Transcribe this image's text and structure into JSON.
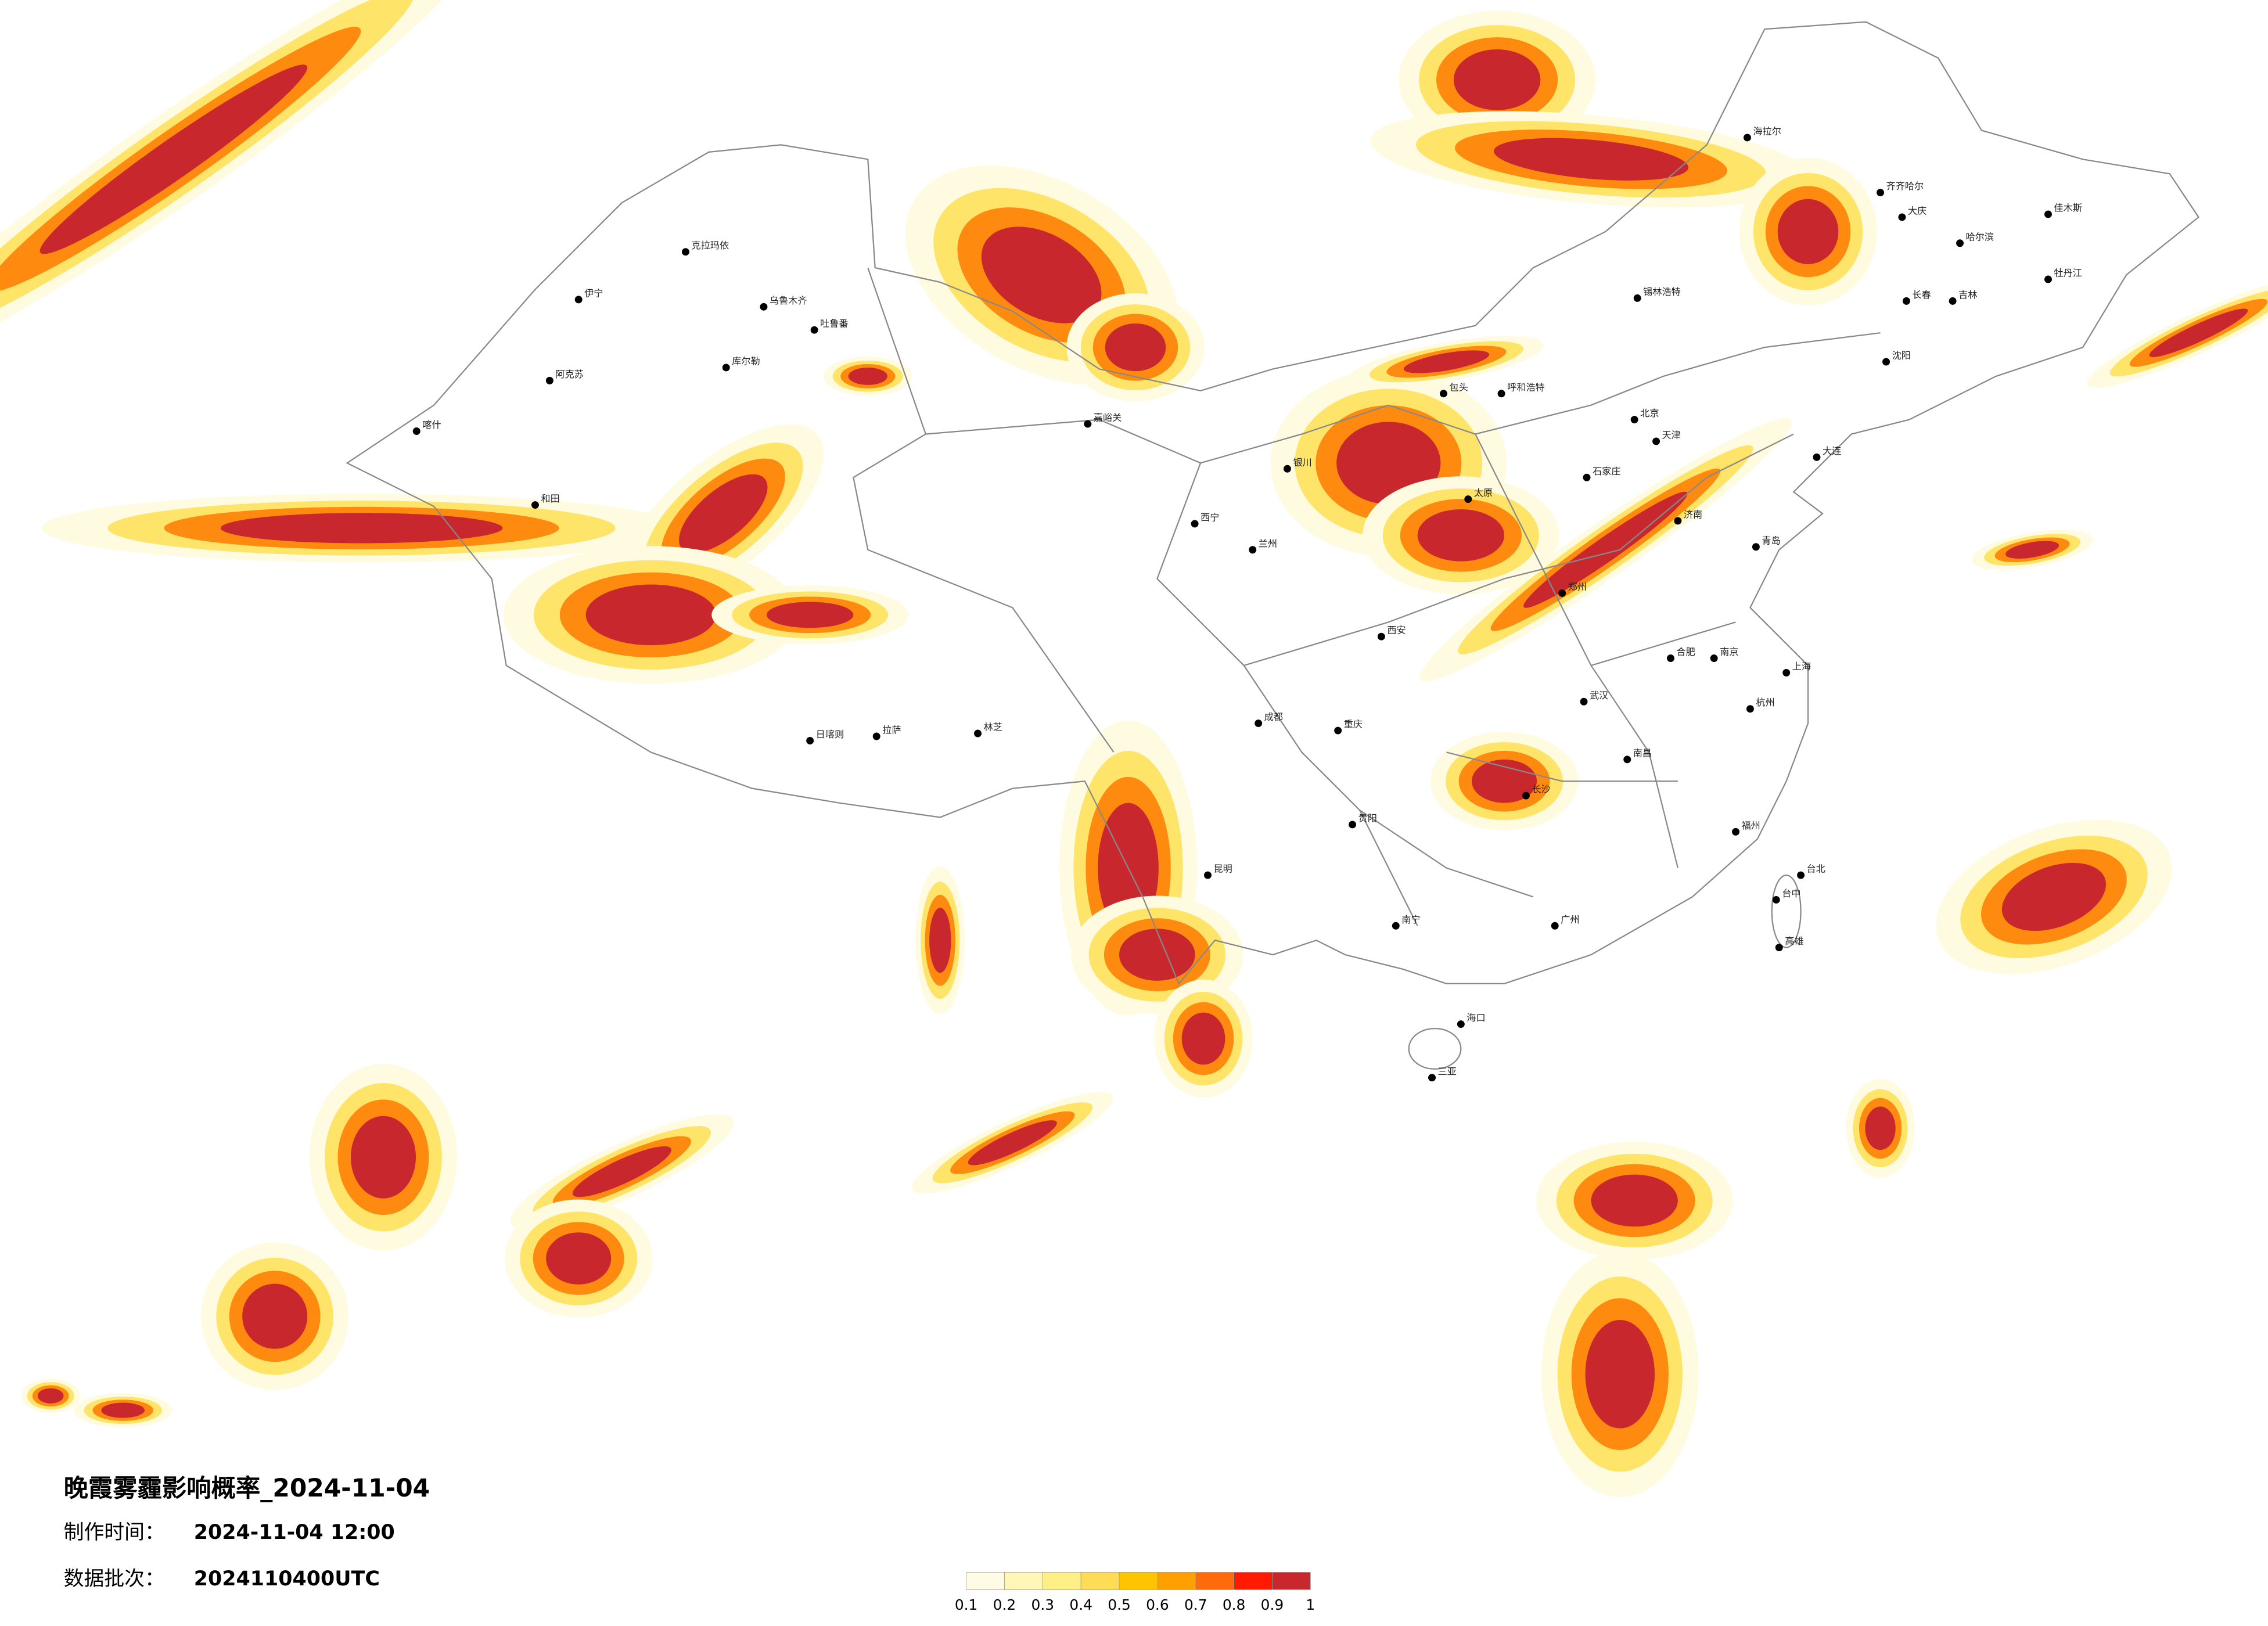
{
  "title": "晚霞雾霾影响概率_2024-11-04",
  "info": [
    {
      "label": "制作时间：",
      "value": "2024-11-04 12:00"
    },
    {
      "label": "数据批次：",
      "value": "2024110400UTC"
    }
  ],
  "legend": {
    "ticks": [
      0.1,
      0.2,
      0.3,
      0.4,
      0.5,
      0.6,
      0.7,
      0.8,
      0.9,
      1
    ],
    "colors": [
      "#fffce6",
      "#fff6b8",
      "#ffef86",
      "#ffdc55",
      "#ffc400",
      "#ffa000",
      "#ff6b0a",
      "#ff1a00",
      "#c8282d"
    ]
  },
  "cities": [
    {
      "name": "克拉玛依"
    },
    {
      "name": "乌鲁木齐"
    },
    {
      "name": "吐鲁番"
    },
    {
      "name": "库尔勒"
    },
    {
      "name": "阿克苏"
    },
    {
      "name": "伊宁"
    },
    {
      "name": "喀什"
    },
    {
      "name": "和田"
    },
    {
      "name": "嘉峪关"
    },
    {
      "name": "西宁"
    },
    {
      "name": "兰州"
    },
    {
      "name": "银川"
    },
    {
      "name": "拉萨"
    },
    {
      "name": "日喀则"
    },
    {
      "name": "林芝"
    },
    {
      "name": "锡林浩特"
    },
    {
      "name": "海拉尔"
    },
    {
      "name": "齐齐哈尔"
    },
    {
      "name": "哈尔滨"
    },
    {
      "name": "大庆"
    },
    {
      "name": "长春"
    },
    {
      "name": "吉林"
    },
    {
      "name": "牡丹江"
    },
    {
      "name": "佳木斯"
    },
    {
      "name": "沈阳"
    },
    {
      "name": "大连"
    },
    {
      "name": "呼和浩特"
    },
    {
      "name": "包头"
    },
    {
      "name": "北京"
    },
    {
      "name": "天津"
    },
    {
      "name": "石家庄"
    },
    {
      "name": "太原"
    },
    {
      "name": "济南"
    },
    {
      "name": "青岛"
    },
    {
      "name": "郑州"
    },
    {
      "name": "西安"
    },
    {
      "name": "成都"
    },
    {
      "name": "重庆"
    },
    {
      "name": "贵阳"
    },
    {
      "name": "昆明"
    },
    {
      "name": "南宁"
    },
    {
      "name": "广州"
    },
    {
      "name": "海口"
    },
    {
      "name": "三亚"
    },
    {
      "name": "长沙"
    },
    {
      "name": "武汉"
    },
    {
      "name": "南昌"
    },
    {
      "name": "合肥"
    },
    {
      "name": "南京"
    },
    {
      "name": "上海"
    },
    {
      "name": "杭州"
    },
    {
      "name": "福州"
    },
    {
      "name": "台北"
    },
    {
      "name": "台中"
    },
    {
      "name": "高雄"
    }
  ]
}
